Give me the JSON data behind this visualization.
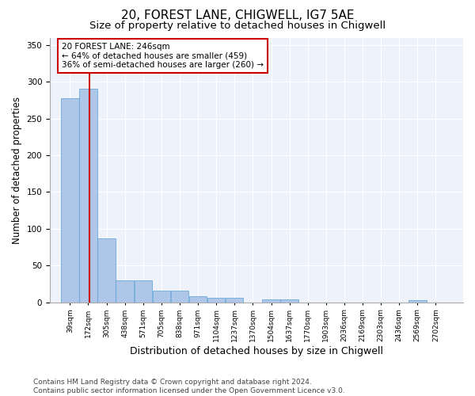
{
  "title": "20, FOREST LANE, CHIGWELL, IG7 5AE",
  "subtitle": "Size of property relative to detached houses in Chigwell",
  "xlabel": "Distribution of detached houses by size in Chigwell",
  "ylabel": "Number of detached properties",
  "bar_color": "#aec6e8",
  "bar_edge_color": "#5a9fd4",
  "annotation_box_color": "#cc0000",
  "annotation_line_color": "#cc0000",
  "footer": "Contains HM Land Registry data © Crown copyright and database right 2024.\nContains public sector information licensed under the Open Government Licence v3.0.",
  "property_label": "20 FOREST LANE: 246sqm",
  "annotation_line1": "← 64% of detached houses are smaller (459)",
  "annotation_line2": "36% of semi-detached houses are larger (260) →",
  "categories": [
    "39sqm",
    "172sqm",
    "305sqm",
    "438sqm",
    "571sqm",
    "705sqm",
    "838sqm",
    "971sqm",
    "1104sqm",
    "1237sqm",
    "1370sqm",
    "1504sqm",
    "1637sqm",
    "1770sqm",
    "1903sqm",
    "2036sqm",
    "2169sqm",
    "2303sqm",
    "2436sqm",
    "2569sqm",
    "2702sqm"
  ],
  "values": [
    278,
    290,
    87,
    30,
    30,
    16,
    16,
    8,
    6,
    6,
    0,
    4,
    4,
    0,
    0,
    0,
    0,
    0,
    0,
    3,
    0
  ],
  "bin_edges": [
    39,
    172,
    305,
    438,
    571,
    705,
    838,
    971,
    1104,
    1237,
    1370,
    1504,
    1637,
    1770,
    1903,
    2036,
    2169,
    2303,
    2436,
    2569,
    2702,
    2835
  ],
  "vline_x": 246,
  "ylim": [
    0,
    360
  ],
  "yticks": [
    0,
    50,
    100,
    150,
    200,
    250,
    300,
    350
  ],
  "background_color": "#eef2fb",
  "grid_color": "#ffffff",
  "title_fontsize": 11,
  "subtitle_fontsize": 9.5,
  "axis_label_fontsize": 8.5,
  "tick_fontsize": 6.5,
  "footer_fontsize": 6.5,
  "annotation_fontsize": 7.5
}
